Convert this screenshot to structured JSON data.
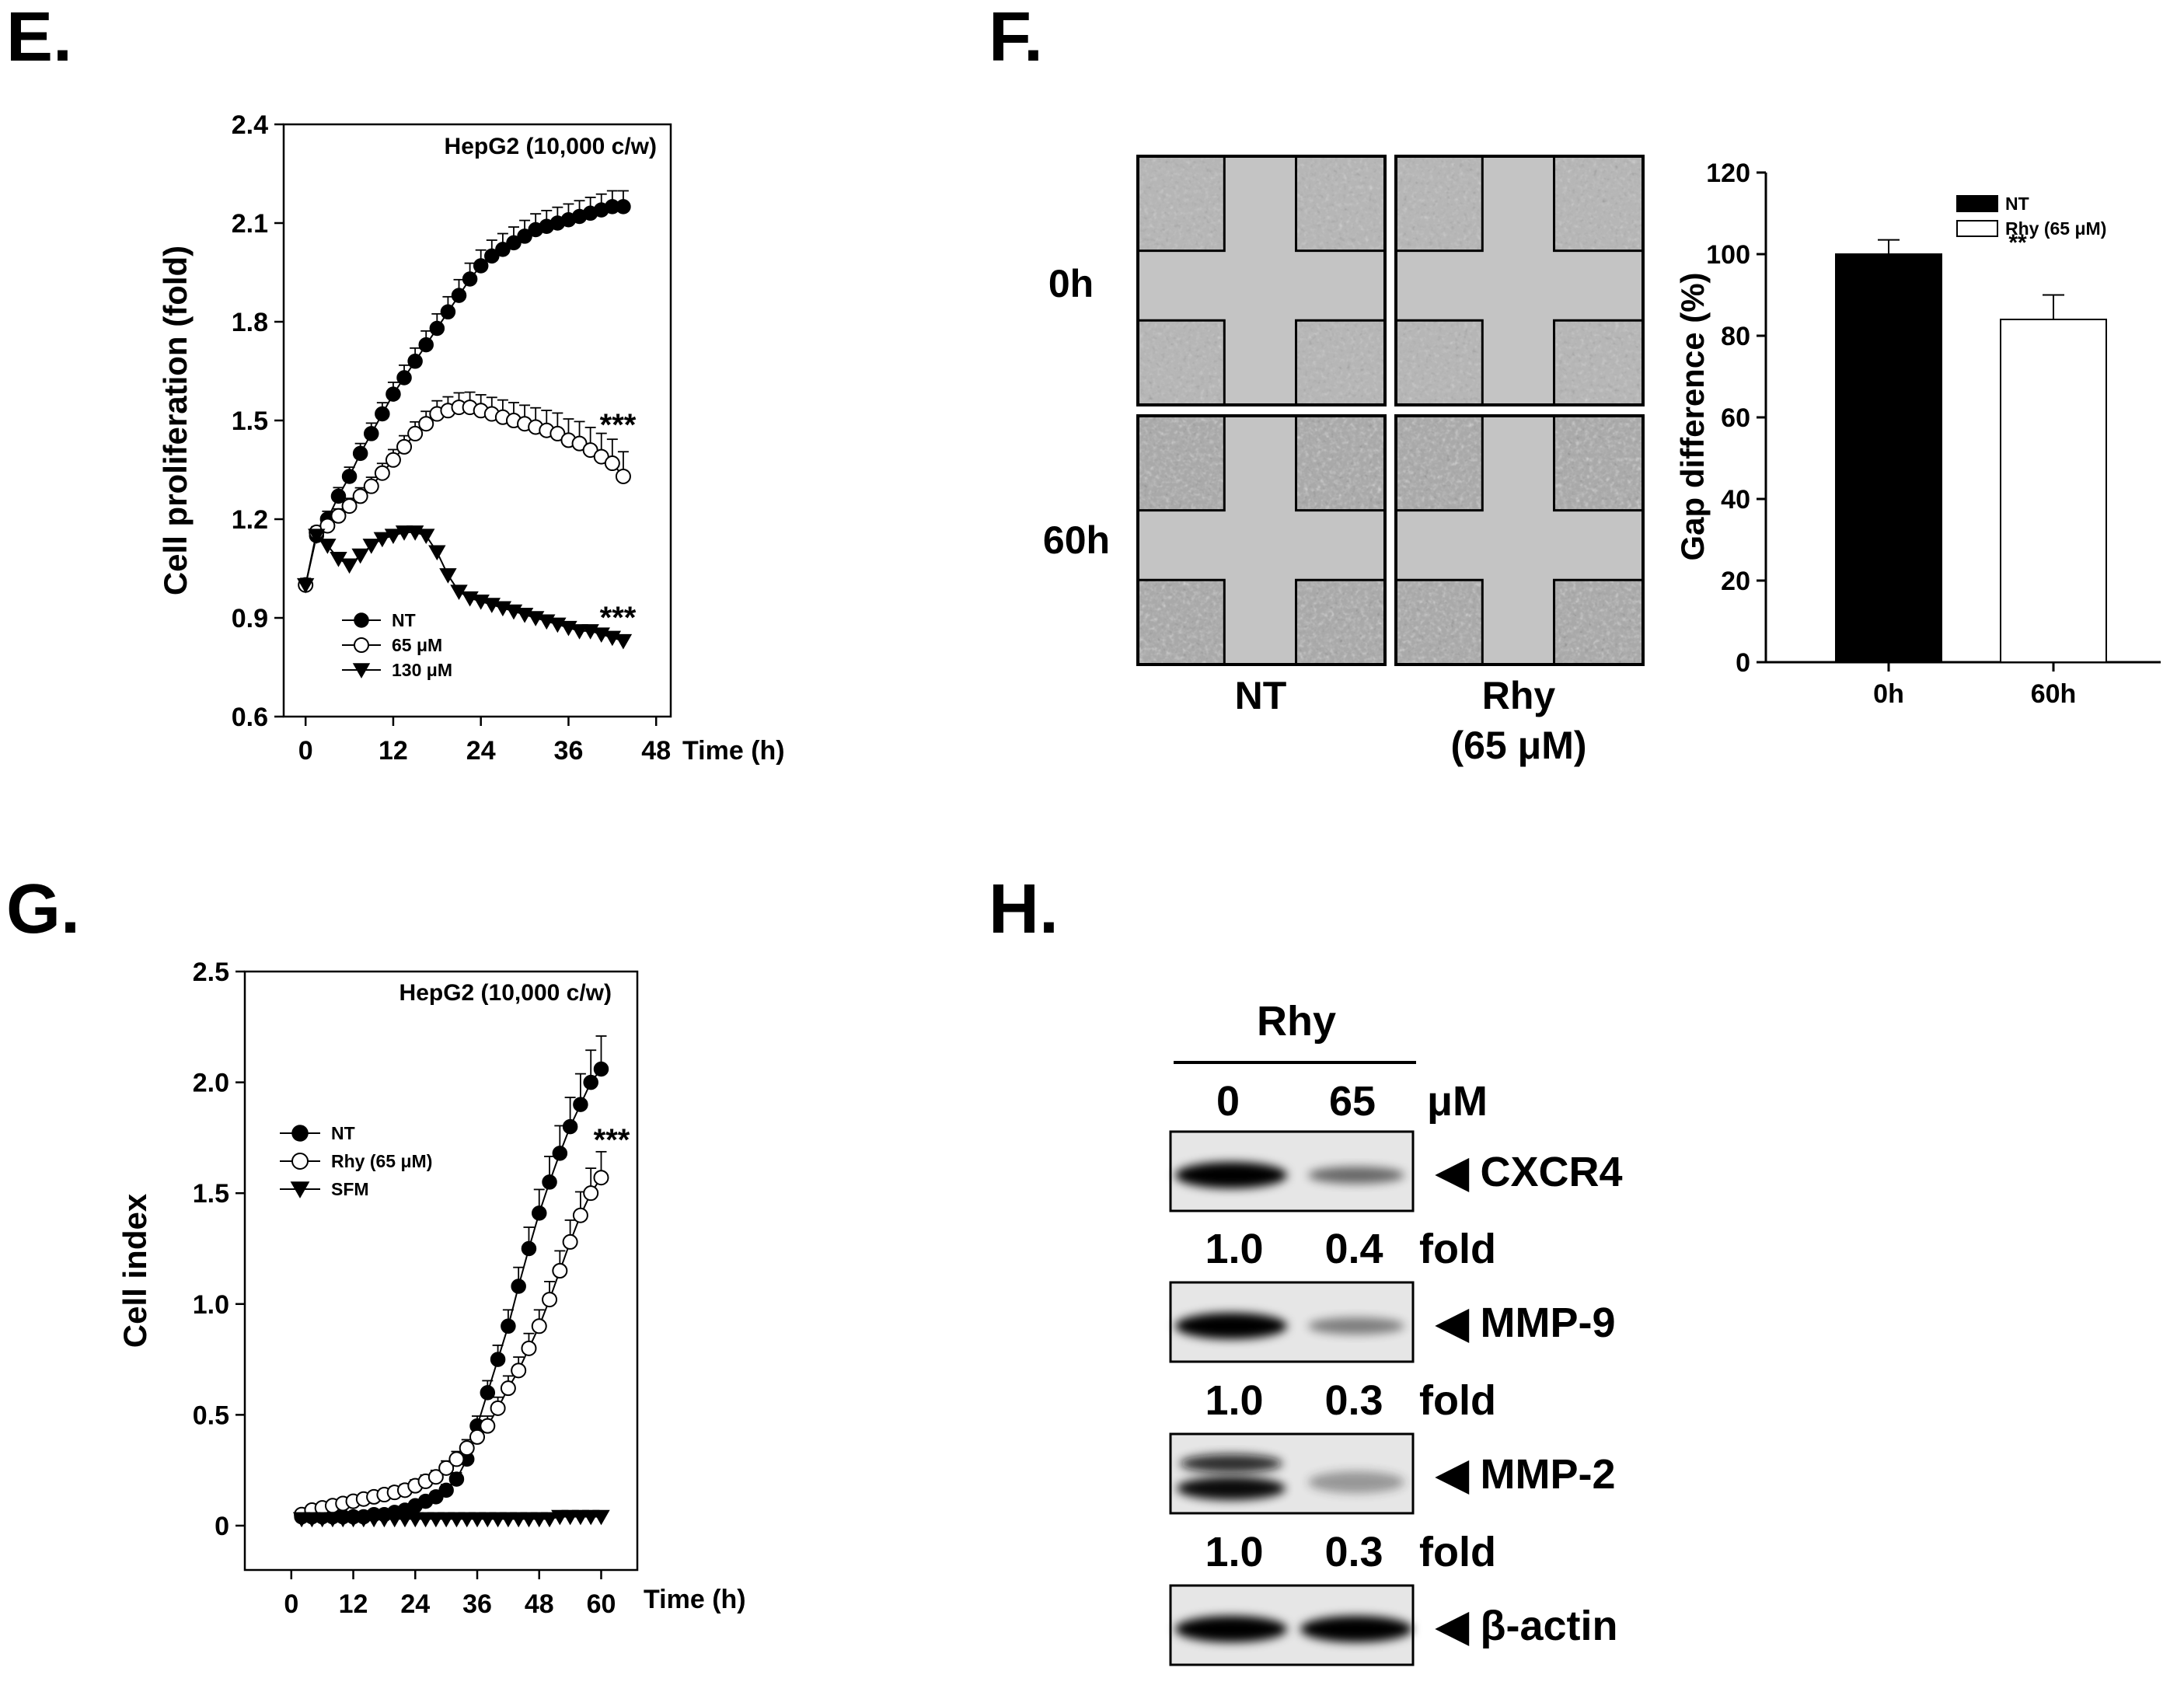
{
  "panels": {
    "E": {
      "letter": "E.",
      "annotation": "HepG2 (10,000 c/w)",
      "significance": [
        "***",
        "***"
      ]
    },
    "F": {
      "letter": "F.",
      "row_labels": [
        "0h",
        "60h"
      ],
      "col_labels": [
        "NT",
        "Rhy",
        "(65 μM)"
      ],
      "significance": "**"
    },
    "G": {
      "letter": "G.",
      "annotation": "HepG2 (10,000 c/w)",
      "significance": "***"
    },
    "H": {
      "letter": "H.",
      "treatment": "Rhy",
      "doses": [
        "0",
        "65"
      ],
      "dose_unit": "μM",
      "bands": [
        {
          "name": "CXCR4",
          "label": "◀ CXCR4",
          "fold": [
            "1.0",
            "0.4"
          ],
          "fold_unit": "fold"
        },
        {
          "name": "MMP-9",
          "label": "◀ MMP-9",
          "fold": [
            "1.0",
            "0.3"
          ],
          "fold_unit": "fold"
        },
        {
          "name": "MMP-2",
          "label": "◀ MMP-2",
          "fold": [
            "1.0",
            "0.3"
          ],
          "fold_unit": "fold"
        },
        {
          "name": "beta-actin",
          "label": "◀ β-actin"
        }
      ]
    }
  },
  "chart_data": [
    {
      "panel": "E",
      "type": "line",
      "title": "",
      "xlabel": "Time (h)",
      "ylabel": "Cell proliferation (fold)",
      "xlim": [
        -3,
        50
      ],
      "ylim": [
        0.6,
        2.4
      ],
      "xticks": [
        "0",
        "12",
        "24",
        "36",
        "48"
      ],
      "yticks": [
        "0.6",
        "0.9",
        "1.2",
        "1.5",
        "1.8",
        "2.1",
        "2.4"
      ],
      "legend_position": "bottom-left",
      "series": [
        {
          "name": "NT",
          "marker": "filled-circle",
          "x": [
            0,
            1.5,
            3,
            4.5,
            6,
            7.5,
            9,
            10.5,
            12,
            13.5,
            15,
            16.5,
            18,
            19.5,
            21,
            22.5,
            24,
            25.5,
            27,
            28.5,
            30,
            31.5,
            33,
            34.5,
            36,
            37.5,
            39,
            40.5,
            42,
            43.5
          ],
          "y": [
            1.0,
            1.15,
            1.2,
            1.27,
            1.33,
            1.4,
            1.46,
            1.52,
            1.58,
            1.63,
            1.68,
            1.73,
            1.78,
            1.83,
            1.88,
            1.93,
            1.97,
            2.0,
            2.02,
            2.04,
            2.06,
            2.08,
            2.09,
            2.1,
            2.11,
            2.12,
            2.13,
            2.14,
            2.15,
            2.15
          ]
        },
        {
          "name": "65 μM",
          "marker": "open-circle",
          "x": [
            0,
            1.5,
            3,
            4.5,
            6,
            7.5,
            9,
            10.5,
            12,
            13.5,
            15,
            16.5,
            18,
            19.5,
            21,
            22.5,
            24,
            25.5,
            27,
            28.5,
            30,
            31.5,
            33,
            34.5,
            36,
            37.5,
            39,
            40.5,
            42,
            43.5
          ],
          "y": [
            1.0,
            1.16,
            1.18,
            1.21,
            1.24,
            1.27,
            1.3,
            1.34,
            1.38,
            1.42,
            1.46,
            1.49,
            1.52,
            1.53,
            1.54,
            1.54,
            1.53,
            1.52,
            1.51,
            1.5,
            1.49,
            1.48,
            1.47,
            1.46,
            1.44,
            1.43,
            1.41,
            1.39,
            1.37,
            1.33
          ]
        },
        {
          "name": "130 μM",
          "marker": "filled-triangle-down",
          "x": [
            0,
            1.5,
            3,
            4.5,
            6,
            7.5,
            9,
            10.5,
            12,
            13.5,
            15,
            16.5,
            18,
            19.5,
            21,
            22.5,
            24,
            25.5,
            27,
            28.5,
            30,
            31.5,
            33,
            34.5,
            36,
            37.5,
            39,
            40.5,
            42,
            43.5
          ],
          "y": [
            1.0,
            1.15,
            1.12,
            1.08,
            1.06,
            1.09,
            1.12,
            1.14,
            1.15,
            1.16,
            1.16,
            1.15,
            1.1,
            1.03,
            0.98,
            0.96,
            0.95,
            0.94,
            0.93,
            0.92,
            0.91,
            0.9,
            0.89,
            0.88,
            0.87,
            0.86,
            0.86,
            0.85,
            0.84,
            0.83
          ]
        }
      ]
    },
    {
      "panel": "F",
      "type": "bar",
      "title": "",
      "xlabel": "",
      "ylabel": "Gap difference (%)",
      "categories": [
        "0h",
        "60h"
      ],
      "ylim": [
        0,
        120
      ],
      "yticks": [
        "0",
        "20",
        "40",
        "60",
        "80",
        "100",
        "120"
      ],
      "legend_position": "top-right",
      "series": [
        {
          "name": "NT",
          "color": "#000000",
          "values": [
            100,
            null
          ],
          "errors": [
            3.5,
            null
          ]
        },
        {
          "name": "Rhy (65 μM)",
          "color": "#ffffff",
          "values": [
            null,
            84
          ],
          "errors": [
            null,
            6
          ]
        }
      ]
    },
    {
      "panel": "G",
      "type": "line",
      "title": "",
      "xlabel": "Time (h)",
      "ylabel": "Cell index",
      "xlim": [
        -9,
        67
      ],
      "ylim": [
        -0.2,
        2.5
      ],
      "xticks": [
        "0",
        "12",
        "24",
        "36",
        "48",
        "60"
      ],
      "yticks": [
        "0",
        "0.5",
        "1.0",
        "1.5",
        "2.0",
        "2.5"
      ],
      "legend_position": "middle-left",
      "series": [
        {
          "name": "NT",
          "marker": "filled-circle",
          "x": [
            2,
            4,
            6,
            8,
            10,
            12,
            14,
            16,
            18,
            20,
            22,
            24,
            26,
            28,
            30,
            32,
            34,
            36,
            38,
            40,
            42,
            44,
            46,
            48,
            50,
            52,
            54,
            56,
            58,
            60
          ],
          "y": [
            0.04,
            0.04,
            0.04,
            0.04,
            0.04,
            0.04,
            0.04,
            0.05,
            0.05,
            0.06,
            0.07,
            0.09,
            0.11,
            0.13,
            0.16,
            0.21,
            0.3,
            0.45,
            0.6,
            0.75,
            0.9,
            1.08,
            1.25,
            1.41,
            1.55,
            1.68,
            1.8,
            1.9,
            2.0,
            2.06
          ]
        },
        {
          "name": "Rhy (65 μM)",
          "marker": "open-circle",
          "x": [
            2,
            4,
            6,
            8,
            10,
            12,
            14,
            16,
            18,
            20,
            22,
            24,
            26,
            28,
            30,
            32,
            34,
            36,
            38,
            40,
            42,
            44,
            46,
            48,
            50,
            52,
            54,
            56,
            58,
            60
          ],
          "y": [
            0.05,
            0.07,
            0.08,
            0.09,
            0.1,
            0.11,
            0.12,
            0.13,
            0.14,
            0.15,
            0.16,
            0.18,
            0.2,
            0.22,
            0.26,
            0.3,
            0.35,
            0.4,
            0.45,
            0.53,
            0.62,
            0.7,
            0.8,
            0.9,
            1.02,
            1.15,
            1.28,
            1.4,
            1.5,
            1.57
          ]
        },
        {
          "name": "SFM",
          "marker": "filled-triangle-down",
          "x": [
            2,
            4,
            6,
            8,
            10,
            12,
            14,
            16,
            18,
            20,
            22,
            24,
            26,
            28,
            30,
            32,
            34,
            36,
            38,
            40,
            42,
            44,
            46,
            48,
            50,
            52,
            54,
            56,
            58,
            60
          ],
          "y": [
            0.03,
            0.03,
            0.03,
            0.03,
            0.03,
            0.03,
            0.03,
            0.03,
            0.03,
            0.03,
            0.03,
            0.03,
            0.03,
            0.03,
            0.03,
            0.03,
            0.03,
            0.03,
            0.03,
            0.03,
            0.03,
            0.03,
            0.03,
            0.03,
            0.03,
            0.04,
            0.04,
            0.04,
            0.04,
            0.04
          ]
        }
      ]
    }
  ]
}
